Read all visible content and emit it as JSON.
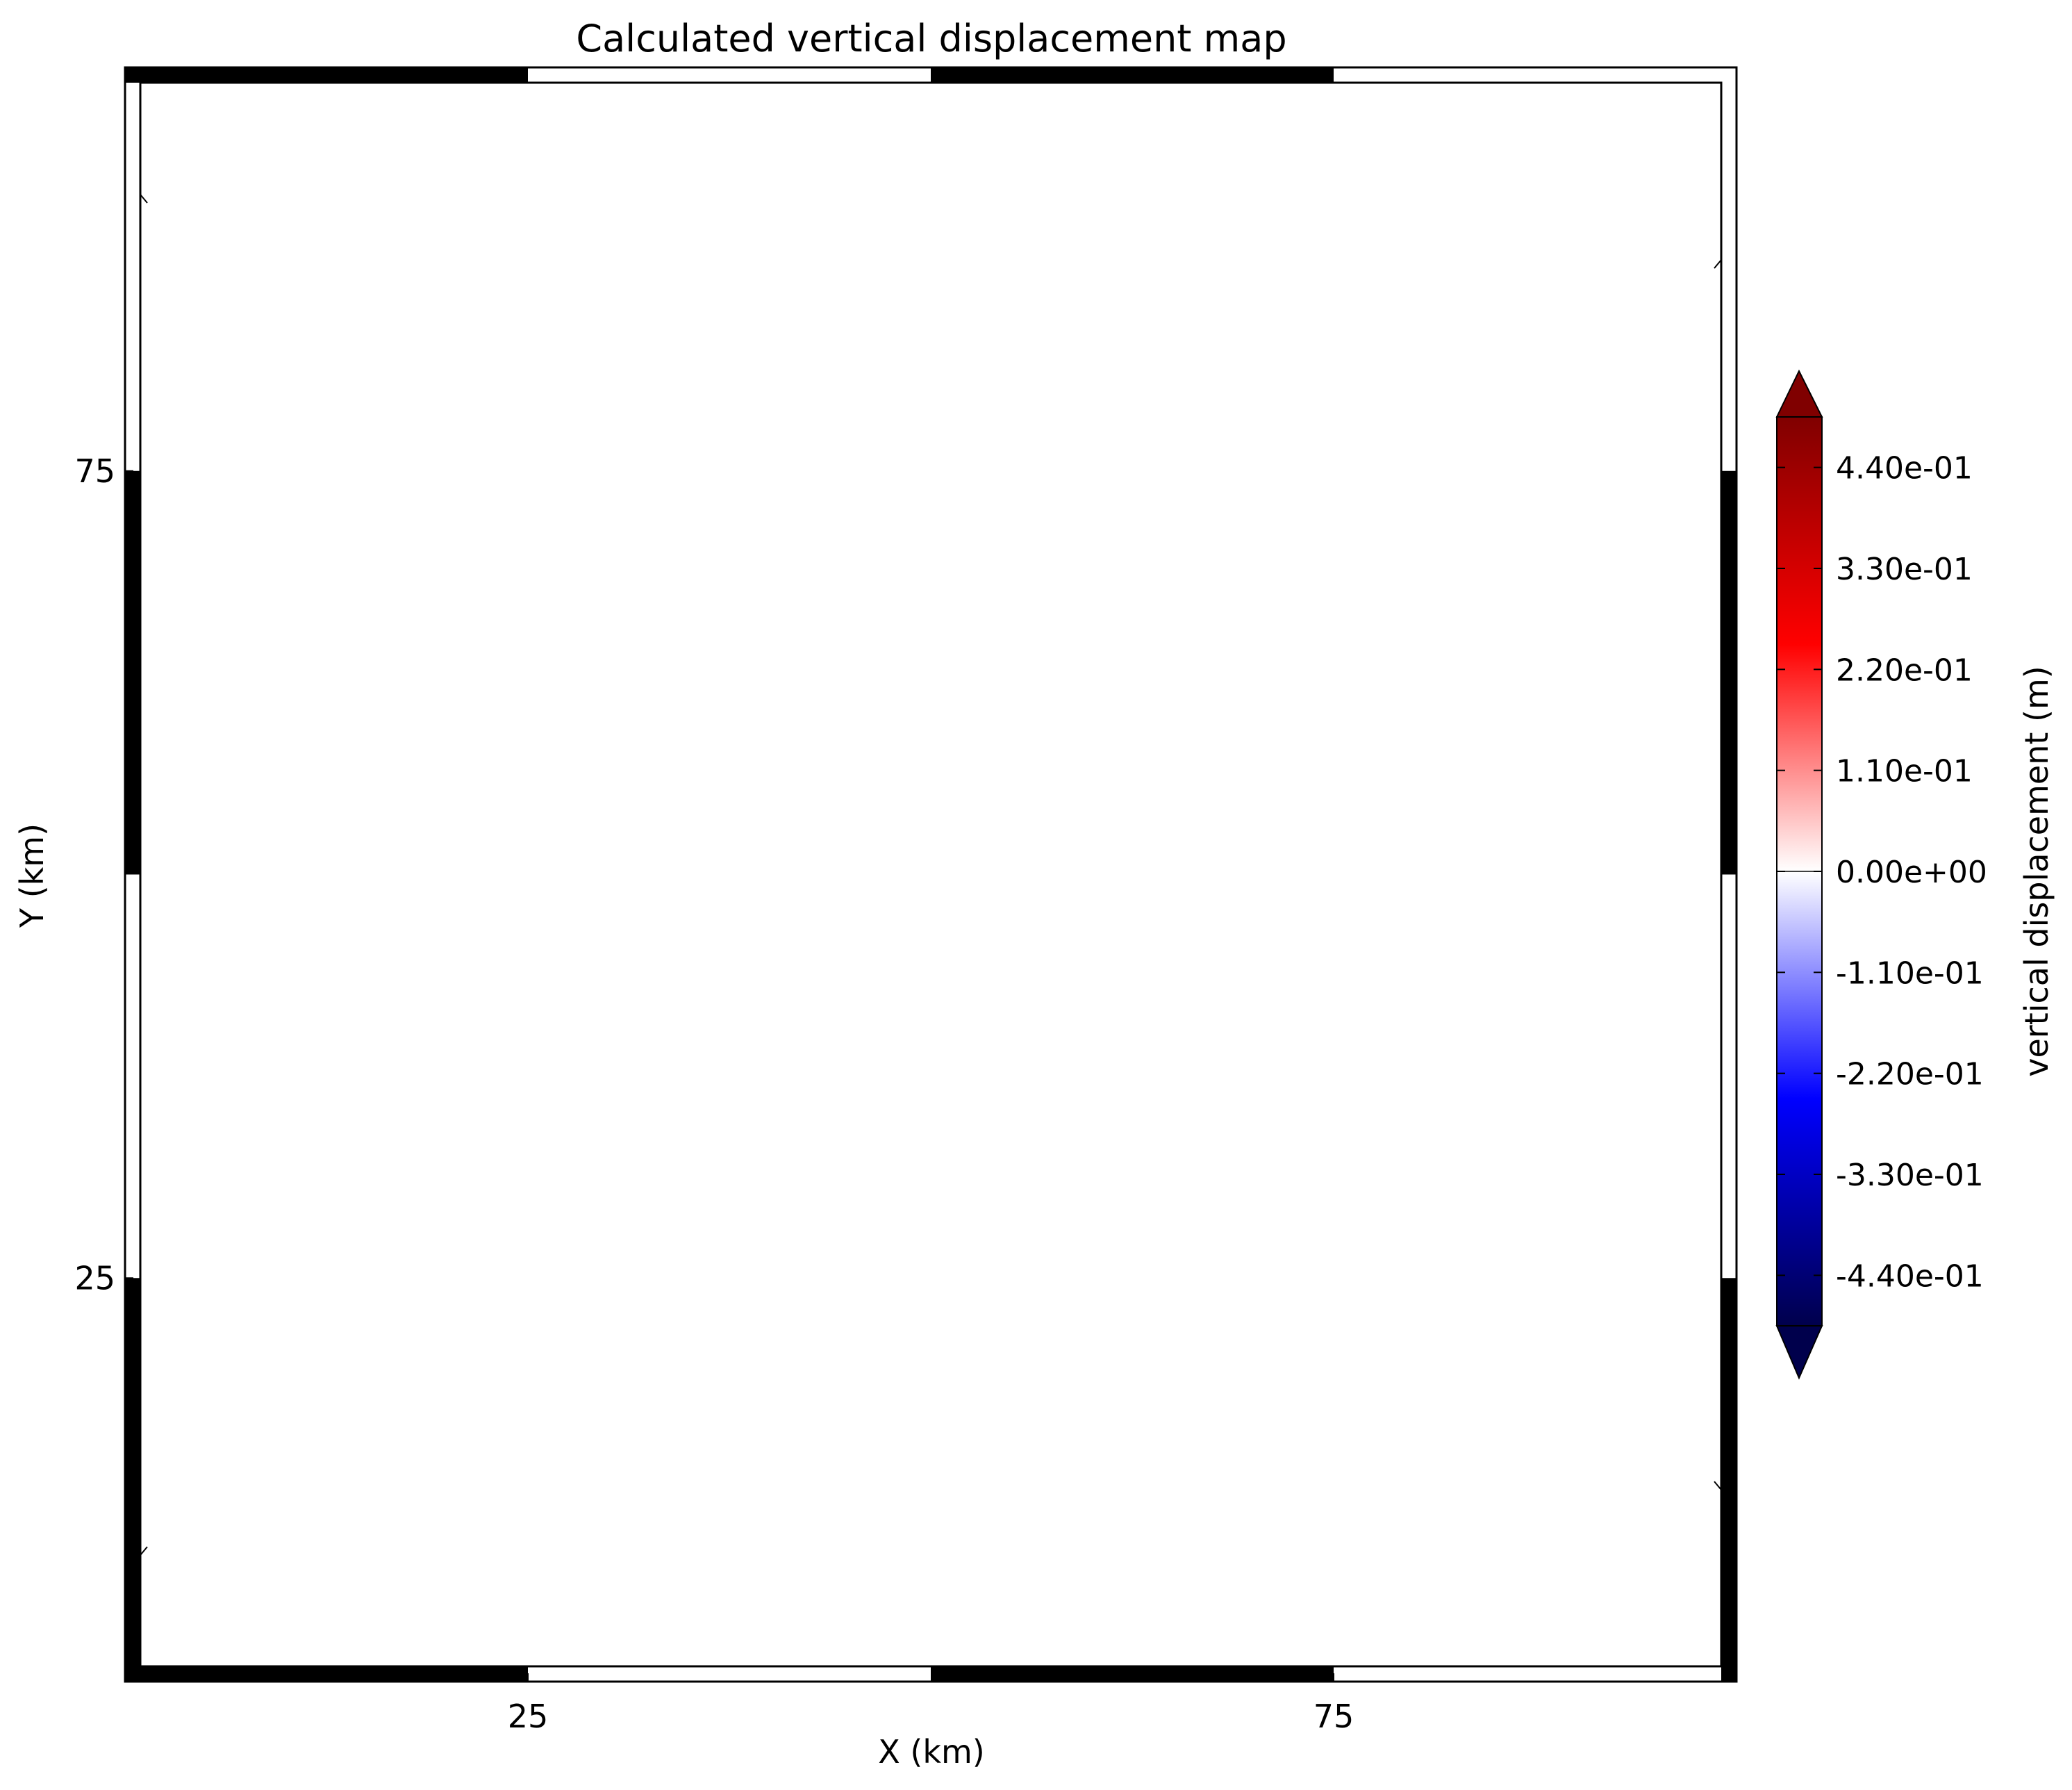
{
  "chart_data": {
    "type": "heatmap",
    "title": "Calculated vertical displacement map",
    "xlabel": "X (km)",
    "ylabel": "Y (km)",
    "xlim": [
      0,
      100
    ],
    "ylim": [
      0,
      100
    ],
    "xticks": [
      25,
      75
    ],
    "yticks": [
      25,
      75
    ],
    "xtick_labels": [
      "25",
      "75"
    ],
    "ytick_labels": [
      "25",
      "75"
    ],
    "values": [],
    "grid": false,
    "frame_style": "checkered-border",
    "colorbar": {
      "label": "vertical displacement (m)",
      "colormap": "seismic",
      "colors": [
        "#00004c",
        "#0000ff",
        "#ffffff",
        "#ff0000",
        "#800000"
      ],
      "vmin": -0.495,
      "vmax": 0.495,
      "extend": "both",
      "ticks": [
        0.44,
        0.33,
        0.22,
        0.11,
        0.0,
        -0.11,
        -0.22,
        -0.33,
        -0.44
      ],
      "tick_labels": [
        "4.40e-01",
        "3.30e-01",
        "2.20e-01",
        "1.10e-01",
        "0.00e+00",
        "-1.10e-01",
        "-2.20e-01",
        "-3.30e-01",
        "-4.40e-01"
      ]
    }
  }
}
